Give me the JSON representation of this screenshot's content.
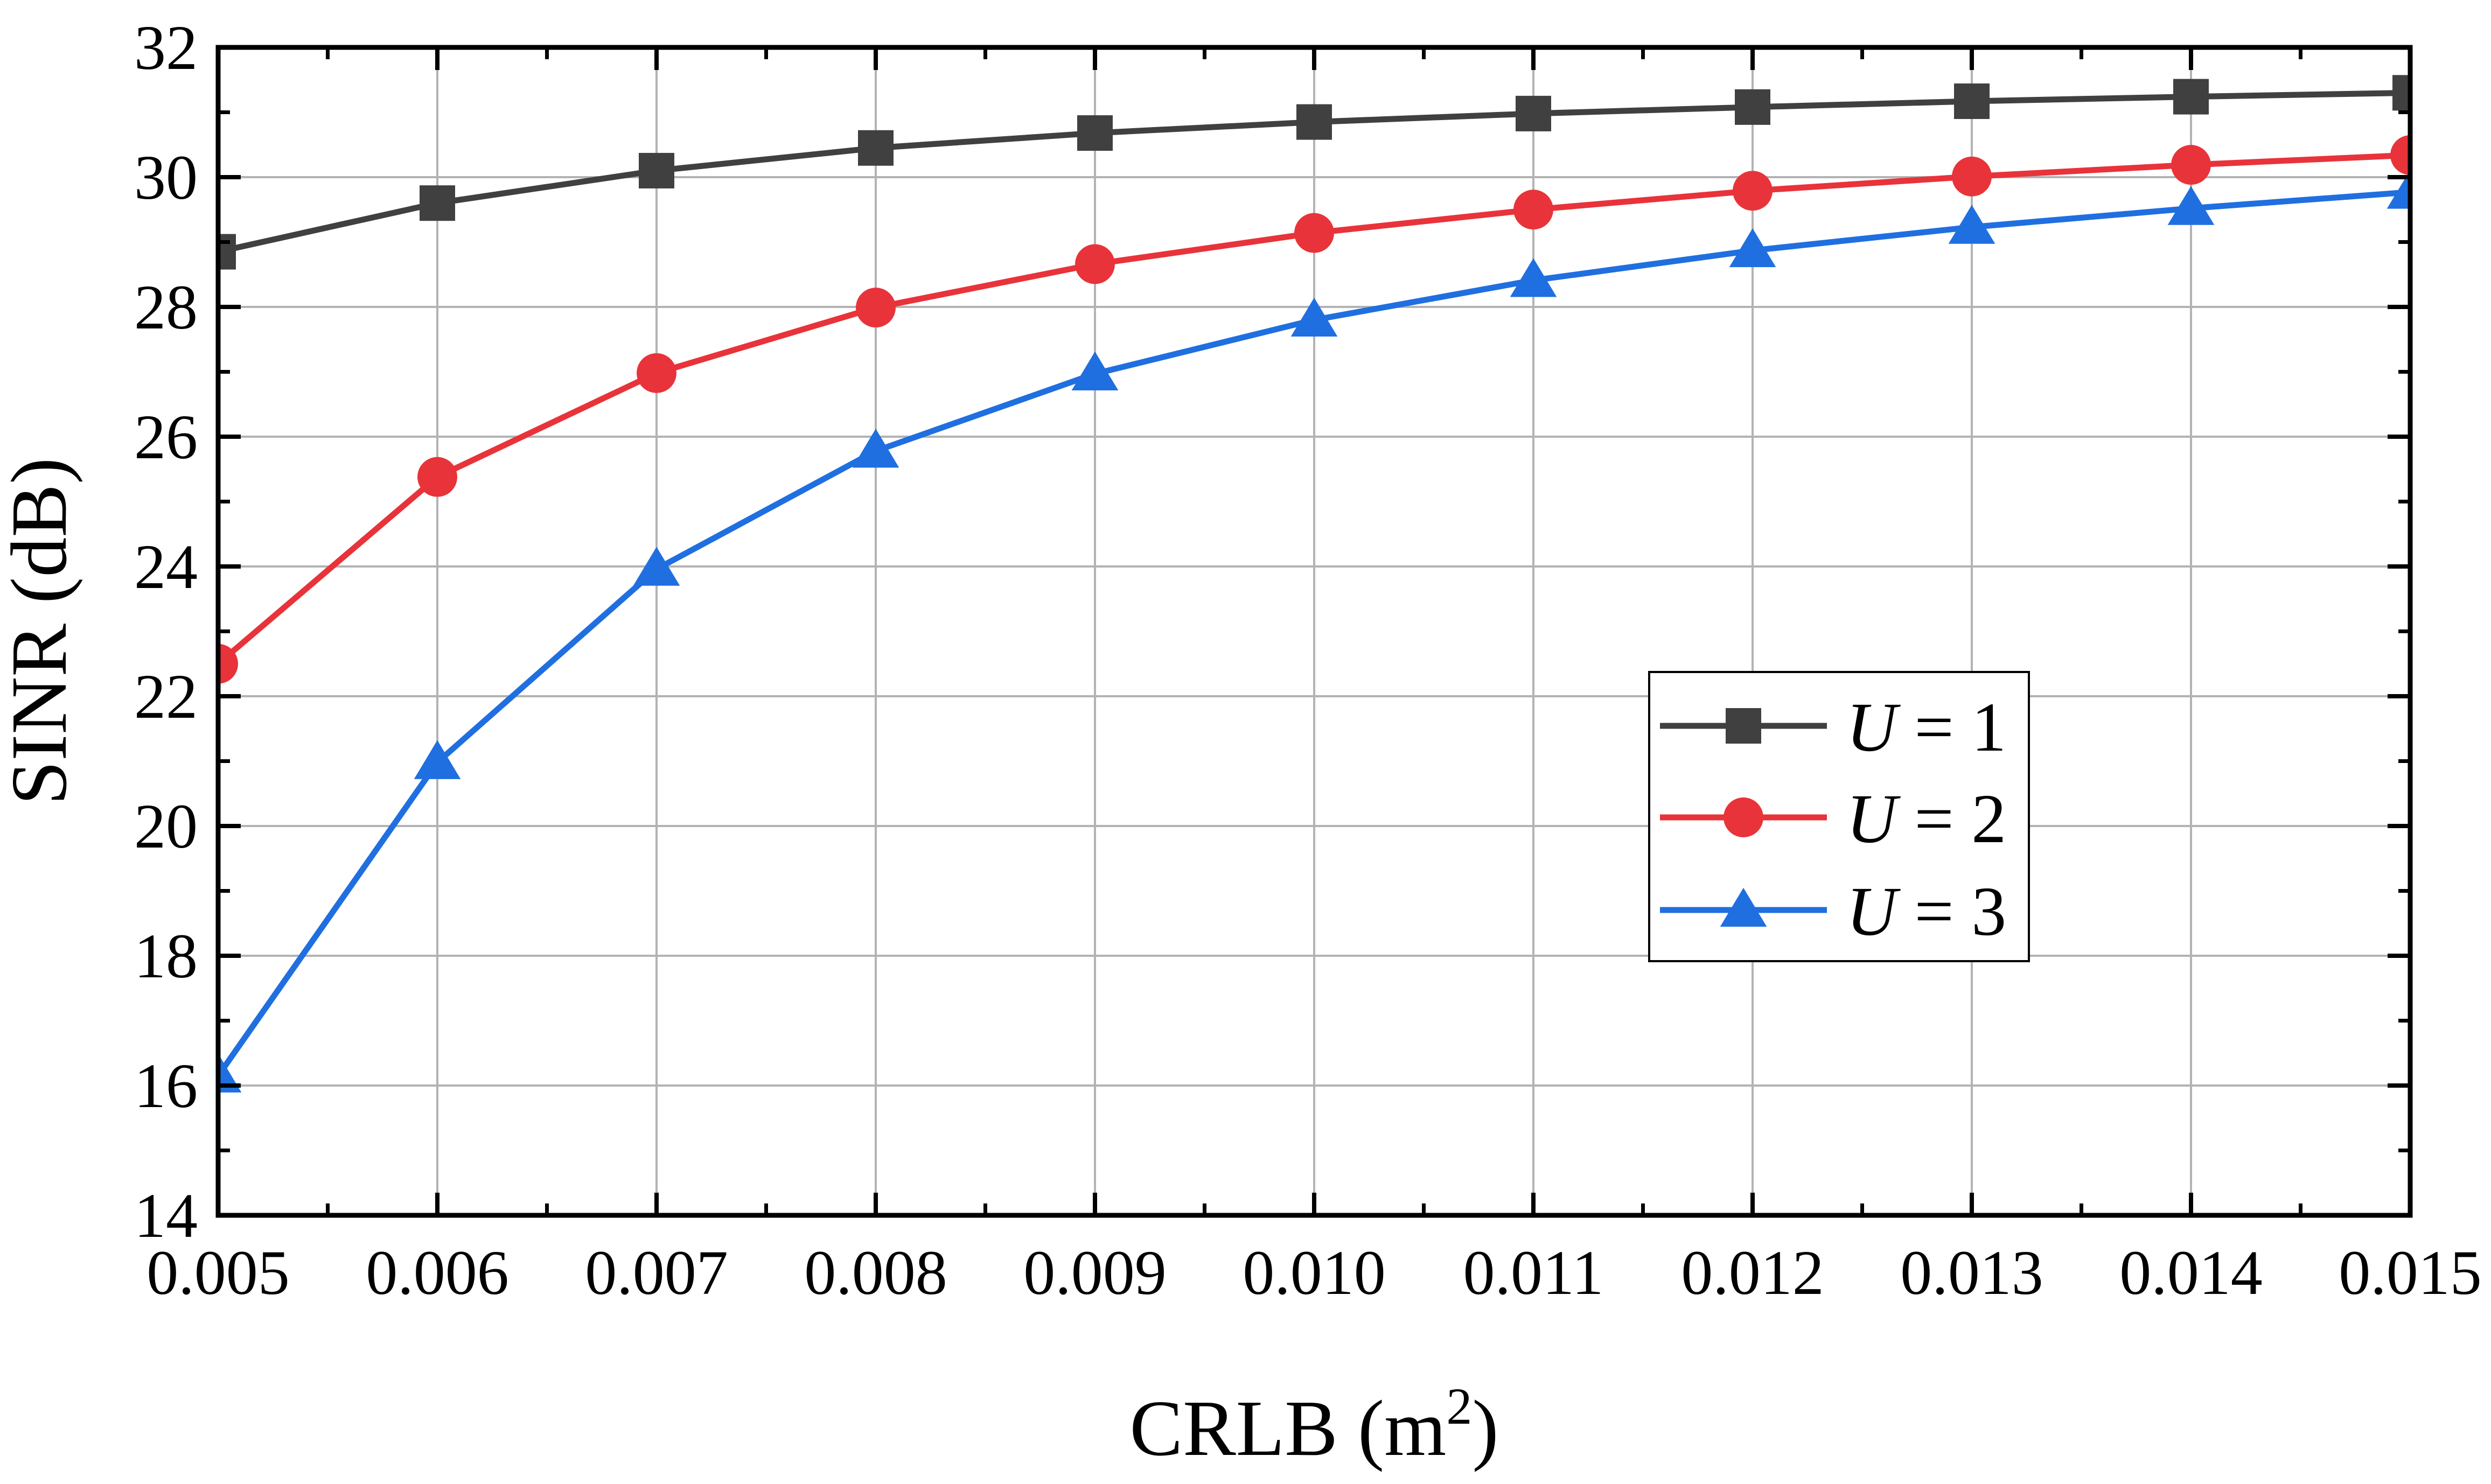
{
  "chart_data": {
    "type": "line",
    "title": "",
    "xlabel": "CRLB (m",
    "xlabel_sup": "2",
    "xlabel_close": ")",
    "ylabel": "SINR (dB)",
    "xlim": [
      0.005,
      0.015
    ],
    "ylim": [
      14,
      32
    ],
    "grid": true,
    "legend_position": "center-right",
    "x": [
      0.005,
      0.006,
      0.007,
      0.008,
      0.009,
      0.01,
      0.011,
      0.012,
      0.013,
      0.014,
      0.015
    ],
    "x_tick_labels": [
      "0.005",
      "0.006",
      "0.007",
      "0.008",
      "0.009",
      "0.010",
      "0.011",
      "0.012",
      "0.013",
      "0.014",
      "0.015"
    ],
    "y_ticks": [
      14,
      16,
      18,
      20,
      22,
      24,
      26,
      28,
      30,
      32
    ],
    "y_tick_labels": [
      "14",
      "16",
      "18",
      "20",
      "22",
      "24",
      "26",
      "28",
      "30",
      "32"
    ],
    "series": [
      {
        "name_var": "U",
        "name_rest": " = 1",
        "color": "#404040",
        "marker": "square",
        "values": [
          28.85,
          29.6,
          30.1,
          30.45,
          30.68,
          30.85,
          30.98,
          31.08,
          31.17,
          31.24,
          31.3
        ]
      },
      {
        "name_var": "U",
        "name_rest": " = 2",
        "color": "#e8333a",
        "marker": "circle",
        "values": [
          22.5,
          25.38,
          26.98,
          27.99,
          28.66,
          29.14,
          29.5,
          29.79,
          30.01,
          30.19,
          30.34
        ]
      },
      {
        "name_var": "U",
        "name_rest": " = 3",
        "color": "#1f6fe0",
        "marker": "triangle",
        "values": [
          16.15,
          20.98,
          23.96,
          25.78,
          26.97,
          27.8,
          28.41,
          28.87,
          29.23,
          29.52,
          29.77
        ]
      }
    ]
  }
}
